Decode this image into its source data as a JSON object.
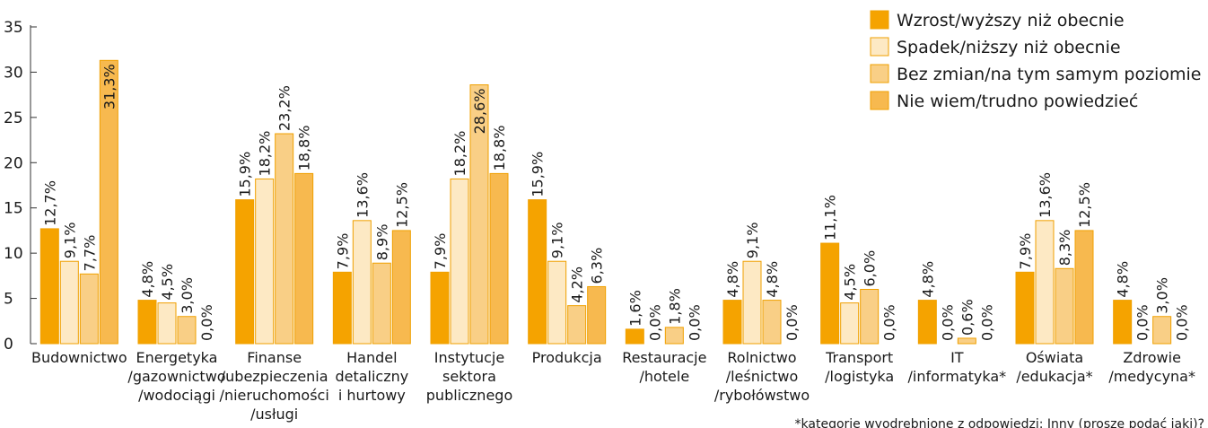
{
  "chart_data": {
    "type": "bar",
    "ylim": [
      0,
      35
    ],
    "yticks": [
      0,
      5,
      10,
      15,
      20,
      25,
      30,
      35
    ],
    "categories": [
      [
        "Budownictwo"
      ],
      [
        "Energetyka",
        "/gazownictwo",
        "/wodociągi"
      ],
      [
        "Finanse",
        "/ubezpieczenia",
        "/nieruchomości",
        "/usługi"
      ],
      [
        "Handel",
        "detaliczny",
        "i hurtowy"
      ],
      [
        "Instytucje",
        "sektora",
        "publicznego"
      ],
      [
        "Produkcja"
      ],
      [
        "Restauracje",
        "/hotele"
      ],
      [
        "Rolnictwo",
        "/leśnictwo",
        "/rybołówstwo"
      ],
      [
        "Transport",
        "/logistyka"
      ],
      [
        "IT",
        "/informatyka*"
      ],
      [
        "Oświata",
        "/edukacja*"
      ],
      [
        "Zdrowie",
        "/medycyna*"
      ]
    ],
    "series": [
      {
        "name": "Wzrost/wyższy niż obecnie",
        "color": "#f5a300",
        "values": [
          12.7,
          4.8,
          15.9,
          7.9,
          7.9,
          15.9,
          1.6,
          4.8,
          11.1,
          4.8,
          7.9,
          4.8
        ],
        "labels": [
          "12,7%",
          "4,8%",
          "15,9%",
          "7,9%",
          "7,9%",
          "15,9%",
          "1,6%",
          "4,8%",
          "11,1%",
          "4,8%",
          "7,9%",
          "4,8%"
        ]
      },
      {
        "name": "Spadek/niższy niż obecnie",
        "color": "#fde9c4",
        "values": [
          9.1,
          4.5,
          18.2,
          13.6,
          18.2,
          9.1,
          0.0,
          9.1,
          4.5,
          0.0,
          13.6,
          0.0
        ],
        "labels": [
          "9,1%",
          "4,5%",
          "18,2%",
          "13,6%",
          "18,2%",
          "9,1%",
          "0,0%",
          "9,1%",
          "4,5%",
          "0,0%",
          "13,6%",
          "0,0%"
        ]
      },
      {
        "name": "Bez zmian/na tym samym poziomie",
        "color": "#f9cf86",
        "values": [
          7.7,
          3.0,
          23.2,
          8.9,
          28.6,
          4.2,
          1.8,
          4.8,
          6.0,
          0.6,
          8.3,
          3.0
        ],
        "labels": [
          "7,7%",
          "3,0%",
          "23,2%",
          "8,9%",
          "28,6%",
          "4,2%",
          "1,8%",
          "4,8%",
          "6,0%",
          "0,6%",
          "8,3%",
          "3,0%"
        ]
      },
      {
        "name": "Nie wiem/trudno powiedzieć",
        "color": "#f7b94f",
        "values": [
          31.3,
          0.0,
          18.8,
          12.5,
          18.8,
          6.3,
          0.0,
          0.0,
          0.0,
          0.0,
          12.5,
          0.0
        ],
        "labels": [
          "31,3%",
          "0,0%",
          "18,8%",
          "12,5%",
          "18,8%",
          "6,3%",
          "0,0%",
          "0,0%",
          "0,0%",
          "0,0%",
          "12,5%",
          "0,0%"
        ]
      }
    ],
    "legend_position": "top-right",
    "footnote": "*kategorie wyodrębnione z odpowiedzi: Inny (proszę podać jaki)?"
  }
}
